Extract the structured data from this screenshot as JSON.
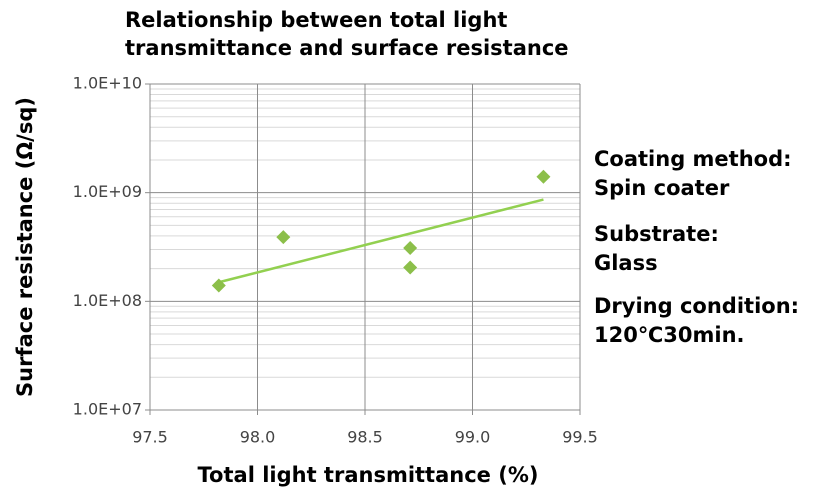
{
  "chart_data": {
    "type": "scatter",
    "title": "Relationship between total light transmittance and surface resistance",
    "xlabel": "Total light transmittance (%)",
    "ylabel": "Surface resistance (Ω/sq)",
    "x": [
      97.82,
      98.12,
      98.71,
      98.71,
      99.33
    ],
    "values": [
      140000000,
      390000000,
      310000000,
      205000000,
      1400000000
    ],
    "color": "#8cbf4a",
    "trendline": {
      "kind": "exponential",
      "color": "#92d050"
    },
    "xlim": [
      97.5,
      99.5
    ],
    "xticks": [
      {
        "value": 97.5,
        "label": "97.5"
      },
      {
        "value": 98.0,
        "label": "98.0"
      },
      {
        "value": 98.5,
        "label": "98.5"
      },
      {
        "value": 99.0,
        "label": "99.0"
      },
      {
        "value": 99.5,
        "label": "99.5"
      }
    ],
    "ylim": [
      10000000,
      10000000000
    ],
    "yticks": [
      {
        "value": 10000000,
        "label": "1.0E+07"
      },
      {
        "value": 100000000,
        "label": "1.0E+08"
      },
      {
        "value": 1000000000,
        "label": "1.0E+09"
      },
      {
        "value": 10000000000,
        "label": "1.0E+10"
      }
    ],
    "ylog": true,
    "grid": true,
    "annotations": [
      [
        "Coating method:",
        "Spin coater"
      ],
      [
        "Substrate:",
        "Glass"
      ],
      [
        "Drying condition:",
        "120℃30min."
      ]
    ]
  }
}
